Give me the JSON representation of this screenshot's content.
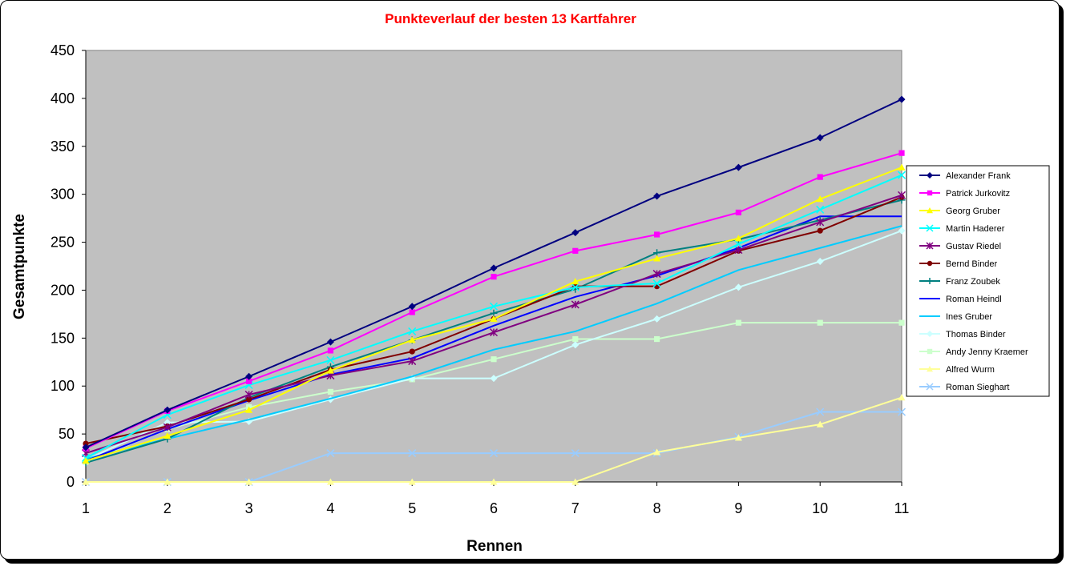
{
  "chart_data": {
    "type": "line",
    "title": "Punkteverlauf der besten 13 Kartfahrer",
    "xlabel": "Rennen",
    "ylabel": "Gesamtpunkte",
    "x": [
      1,
      2,
      3,
      4,
      5,
      6,
      7,
      8,
      9,
      10,
      11
    ],
    "ylim": [
      0,
      450
    ],
    "yticks": [
      0,
      50,
      100,
      150,
      200,
      250,
      300,
      350,
      400,
      450
    ],
    "grid": false,
    "legend_position": "right",
    "plot_background": "#c0c0c0",
    "series": [
      {
        "name": "Alexander Frank",
        "color": "#000080",
        "marker": "diamond",
        "values": [
          36,
          75,
          110,
          146,
          183,
          223,
          260,
          298,
          328,
          359,
          399
        ]
      },
      {
        "name": "Patrick Jurkovitz",
        "color": "#ff00ff",
        "marker": "square",
        "values": [
          35,
          74,
          105,
          137,
          177,
          214,
          241,
          258,
          281,
          318,
          343
        ]
      },
      {
        "name": "Georg Gruber",
        "color": "#ffff00",
        "marker": "triangle",
        "values": [
          22,
          48,
          75,
          116,
          148,
          170,
          209,
          233,
          254,
          295,
          328
        ]
      },
      {
        "name": "Martin Haderer",
        "color": "#00ffff",
        "marker": "x",
        "values": [
          25,
          70,
          101,
          127,
          157,
          183,
          203,
          207,
          248,
          284,
          320
        ]
      },
      {
        "name": "Gustav Riedel",
        "color": "#800080",
        "marker": "star",
        "values": [
          30,
          57,
          91,
          111,
          126,
          156,
          185,
          217,
          242,
          271,
          299
        ]
      },
      {
        "name": "Bernd Binder",
        "color": "#800000",
        "marker": "circle",
        "values": [
          40,
          58,
          86,
          117,
          136,
          170,
          204,
          204,
          241,
          262,
          297
        ]
      },
      {
        "name": "Franz Zoubek",
        "color": "#008080",
        "marker": "plus",
        "values": [
          20,
          45,
          88,
          120,
          148,
          176,
          201,
          239,
          253,
          273,
          294
        ]
      },
      {
        "name": "Roman Heindl",
        "color": "#0000ff",
        "marker": "none",
        "values": [
          22,
          55,
          85,
          112,
          129,
          163,
          193,
          215,
          244,
          277,
          277
        ]
      },
      {
        "name": "Ines Gruber",
        "color": "#00ccff",
        "marker": "none",
        "values": [
          24,
          45,
          65,
          87,
          110,
          138,
          157,
          186,
          221,
          244,
          267
        ]
      },
      {
        "name": "Thomas Binder",
        "color": "#ccffff",
        "marker": "diamond",
        "values": [
          23,
          62,
          63,
          86,
          108,
          108,
          143,
          170,
          203,
          230,
          262
        ]
      },
      {
        "name": "Andy Jenny Kraemer",
        "color": "#ccffcc",
        "marker": "square",
        "values": [
          21,
          55,
          78,
          94,
          107,
          128,
          149,
          149,
          166,
          166,
          166
        ]
      },
      {
        "name": "Alfred Wurm",
        "color": "#ffff99",
        "marker": "triangle",
        "values": [
          0,
          0,
          0,
          0,
          0,
          0,
          0,
          31,
          46,
          60,
          88
        ]
      },
      {
        "name": "Roman Sieghart",
        "color": "#99ccff",
        "marker": "x",
        "values": [
          0,
          0,
          0,
          30,
          30,
          30,
          30,
          30,
          47,
          73,
          73
        ]
      }
    ]
  }
}
